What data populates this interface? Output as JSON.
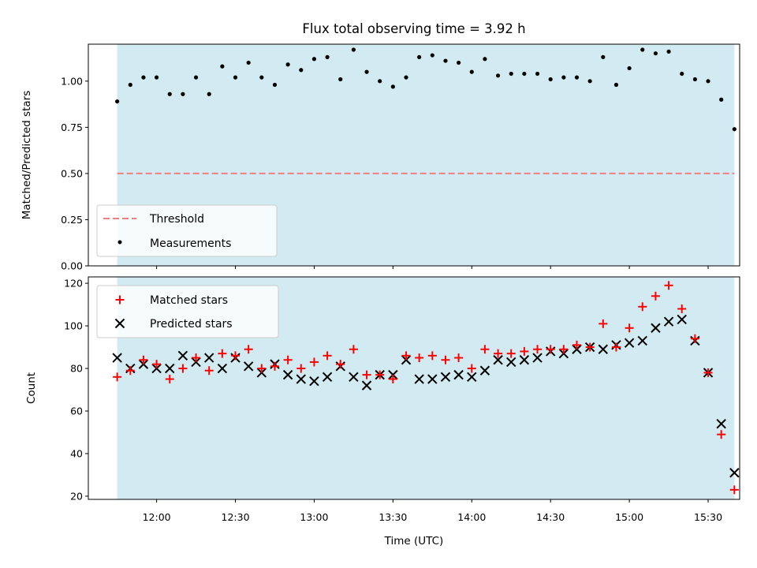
{
  "colors": {
    "observing_band": "#add8e6",
    "threshold": "#f08080",
    "measurements": "#000000",
    "matched": "#ff0000",
    "predicted": "#000000"
  },
  "chart_data": [
    {
      "type": "scatter",
      "title": "Flux total observing time = 3.92 h",
      "xlabel": "",
      "ylabel": "Matched/Predicted stars",
      "xlim": [
        "11:34",
        "15:42"
      ],
      "ylim": [
        0,
        1.2
      ],
      "yticks": [
        "0.00",
        "0.25",
        "0.50",
        "0.75",
        "1.00"
      ],
      "ytick_values": [
        0,
        0.25,
        0.5,
        0.75,
        1.0
      ],
      "grid": false,
      "legend_position": "lower-left",
      "observing_span": [
        "11:45",
        "15:40"
      ],
      "threshold": {
        "name": "Threshold",
        "value": 0.5
      },
      "series": [
        {
          "name": "Measurements",
          "marker": "dot",
          "x": [
            "11:45",
            "11:50",
            "11:55",
            "12:00",
            "12:05",
            "12:10",
            "12:15",
            "12:20",
            "12:25",
            "12:30",
            "12:35",
            "12:40",
            "12:45",
            "12:50",
            "12:55",
            "13:00",
            "13:05",
            "13:10",
            "13:15",
            "13:20",
            "13:25",
            "13:30",
            "13:35",
            "13:40",
            "13:45",
            "13:50",
            "13:55",
            "14:00",
            "14:05",
            "14:10",
            "14:15",
            "14:20",
            "14:25",
            "14:30",
            "14:35",
            "14:40",
            "14:45",
            "14:50",
            "14:55",
            "15:00",
            "15:05",
            "15:10",
            "15:15",
            "15:20",
            "15:25",
            "15:30",
            "15:35",
            "15:40"
          ],
          "y": [
            0.89,
            0.98,
            1.02,
            1.02,
            0.93,
            0.93,
            1.02,
            0.93,
            1.08,
            1.02,
            1.1,
            1.02,
            0.98,
            1.09,
            1.06,
            1.12,
            1.13,
            1.01,
            1.17,
            1.05,
            1.0,
            0.97,
            1.02,
            1.13,
            1.14,
            1.11,
            1.1,
            1.05,
            1.12,
            1.03,
            1.04,
            1.04,
            1.04,
            1.01,
            1.02,
            1.02,
            1.0,
            1.13,
            0.98,
            1.07,
            1.17,
            1.15,
            1.16,
            1.04,
            1.01,
            1.0,
            0.9,
            0.74
          ]
        }
      ]
    },
    {
      "type": "scatter",
      "title": "",
      "xlabel": "Time (UTC)",
      "ylabel": "Count",
      "xlim": [
        "11:34",
        "15:42"
      ],
      "ylim": [
        18.5,
        123
      ],
      "xticks": [
        "12:00",
        "12:30",
        "13:00",
        "13:30",
        "14:00",
        "14:30",
        "15:00",
        "15:30"
      ],
      "yticks": [
        "20",
        "40",
        "60",
        "80",
        "100",
        "120"
      ],
      "ytick_values": [
        20,
        40,
        60,
        80,
        100,
        120
      ],
      "grid": false,
      "legend_position": "upper-left",
      "observing_span": [
        "11:45",
        "15:40"
      ],
      "series": [
        {
          "name": "Matched stars",
          "marker": "plus",
          "x": [
            "11:45",
            "11:50",
            "11:55",
            "12:00",
            "12:05",
            "12:10",
            "12:15",
            "12:20",
            "12:25",
            "12:30",
            "12:35",
            "12:40",
            "12:45",
            "12:50",
            "12:55",
            "13:00",
            "13:05",
            "13:10",
            "13:15",
            "13:20",
            "13:25",
            "13:30",
            "13:35",
            "13:40",
            "13:45",
            "13:50",
            "13:55",
            "14:00",
            "14:05",
            "14:10",
            "14:15",
            "14:20",
            "14:25",
            "14:30",
            "14:35",
            "14:40",
            "14:45",
            "14:50",
            "14:55",
            "15:00",
            "15:05",
            "15:10",
            "15:15",
            "15:20",
            "15:25",
            "15:30",
            "15:35",
            "15:40"
          ],
          "y": [
            76,
            79,
            84,
            82,
            75,
            80,
            85,
            79,
            87,
            86,
            89,
            80,
            81,
            84,
            80,
            83,
            86,
            82,
            89,
            77,
            77,
            75,
            86,
            85,
            86,
            84,
            85,
            80,
            89,
            87,
            87,
            88,
            89,
            89,
            89,
            91,
            90,
            101,
            90,
            99,
            109,
            114,
            119,
            108,
            94,
            78,
            49,
            23
          ]
        },
        {
          "name": "Predicted stars",
          "marker": "x",
          "x": [
            "11:45",
            "11:50",
            "11:55",
            "12:00",
            "12:05",
            "12:10",
            "12:15",
            "12:20",
            "12:25",
            "12:30",
            "12:35",
            "12:40",
            "12:45",
            "12:50",
            "12:55",
            "13:00",
            "13:05",
            "13:10",
            "13:15",
            "13:20",
            "13:25",
            "13:30",
            "13:35",
            "13:40",
            "13:45",
            "13:50",
            "13:55",
            "14:00",
            "14:05",
            "14:10",
            "14:15",
            "14:20",
            "14:25",
            "14:30",
            "14:35",
            "14:40",
            "14:45",
            "14:50",
            "14:55",
            "15:00",
            "15:05",
            "15:10",
            "15:15",
            "15:20",
            "15:25",
            "15:30",
            "15:35",
            "15:40"
          ],
          "y": [
            85,
            80,
            82,
            80,
            80,
            86,
            83,
            85,
            80,
            85,
            81,
            78,
            82,
            77,
            75,
            74,
            76,
            81,
            76,
            72,
            77,
            77,
            84,
            75,
            75,
            76,
            77,
            76,
            79,
            84,
            83,
            84,
            85,
            88,
            87,
            89,
            90,
            89,
            91,
            92,
            93,
            99,
            102,
            103,
            93,
            78,
            54,
            31
          ]
        }
      ]
    }
  ]
}
